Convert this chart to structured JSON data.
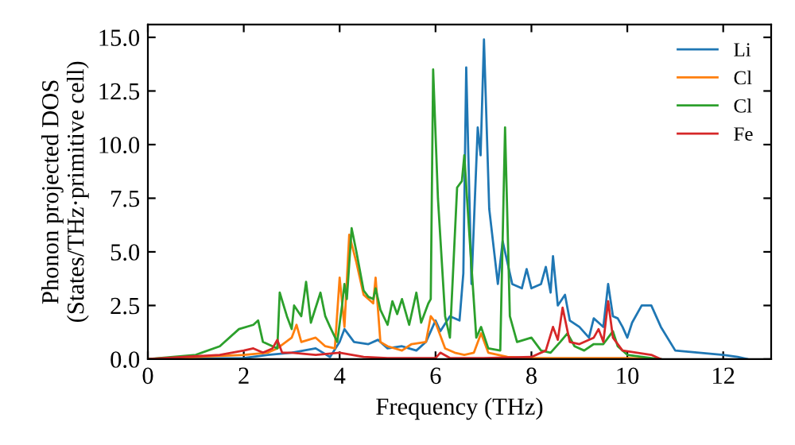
{
  "chart_data": {
    "type": "line",
    "xlabel": "Frequency (THz)",
    "ylabel": "Phonon projected DOS\n(States/THz·primitive cell)",
    "xlim": [
      0,
      13
    ],
    "ylim": [
      0,
      15.6
    ],
    "xticks": [
      0,
      2,
      4,
      6,
      8,
      10,
      12
    ],
    "yticks": [
      {
        "value": 0,
        "label": "0.0"
      },
      {
        "value": 2.5,
        "label": "2.5"
      },
      {
        "value": 5,
        "label": "5.0"
      },
      {
        "value": 7.5,
        "label": "7.5"
      },
      {
        "value": 10,
        "label": "10.0"
      },
      {
        "value": 12.5,
        "label": "12.5"
      },
      {
        "value": 15,
        "label": "15.0"
      }
    ],
    "grid": false,
    "legend": "top right",
    "line_style": "solid",
    "series": [
      {
        "name": "Li",
        "color": "#1f77b4",
        "x": [
          0,
          2,
          2.5,
          3,
          3.5,
          3.8,
          4,
          4.1,
          4.3,
          4.6,
          4.8,
          5,
          5.3,
          5.6,
          5.8,
          6,
          6.1,
          6.3,
          6.5,
          6.58,
          6.64,
          6.75,
          6.88,
          6.94,
          7.01,
          7.12,
          7.3,
          7.4,
          7.5,
          7.6,
          7.8,
          7.9,
          8.0,
          8.2,
          8.3,
          8.4,
          8.45,
          8.55,
          8.7,
          8.8,
          9.0,
          9.2,
          9.3,
          9.4,
          9.5,
          9.6,
          9.7,
          9.8,
          9.9,
          10.0,
          10.1,
          10.3,
          10.5,
          10.7,
          11.0,
          12.0,
          12.3,
          12.5
        ],
        "values": [
          0,
          0.05,
          0.2,
          0.3,
          0.5,
          0.1,
          0.8,
          1.4,
          0.8,
          0.7,
          0.9,
          0.5,
          0.6,
          0.4,
          0.8,
          1.8,
          1.3,
          2.0,
          1.8,
          4.0,
          13.6,
          3.5,
          10.8,
          9.5,
          14.9,
          7.0,
          3.5,
          5.5,
          4.5,
          3.5,
          3.3,
          4.2,
          3.3,
          3.5,
          4.3,
          3.1,
          4.8,
          2.5,
          3.0,
          1.8,
          1.5,
          1.0,
          1.9,
          1.7,
          1.5,
          3.5,
          2.0,
          1.9,
          1.5,
          1.0,
          1.7,
          2.5,
          2.5,
          1.5,
          0.4,
          0.2,
          0.1,
          0
        ]
      },
      {
        "name": "Cl",
        "color": "#ff7f0e",
        "x": [
          0,
          2,
          2.5,
          2.7,
          3.0,
          3.1,
          3.2,
          3.5,
          3.7,
          3.9,
          4.0,
          4.1,
          4.2,
          4.35,
          4.5,
          4.7,
          4.75,
          4.85,
          5.0,
          5.3,
          5.5,
          5.8,
          5.9,
          6.0,
          6.2,
          6.4,
          6.6,
          6.8,
          6.95,
          7.1,
          7.5,
          8.0,
          9,
          10,
          10.6
        ],
        "values": [
          0,
          0.2,
          0.3,
          0.5,
          1.0,
          1.6,
          0.8,
          1.0,
          0.6,
          0.5,
          3.8,
          1.5,
          5.8,
          4.5,
          3.0,
          2.6,
          3.8,
          0.8,
          0.6,
          0.4,
          0.7,
          0.8,
          2.0,
          1.7,
          0.5,
          0.3,
          0.2,
          0.3,
          1.2,
          0.3,
          0.1,
          0.05,
          0.05,
          0.05,
          0
        ]
      },
      {
        "name": "Cl",
        "color": "#2ca02c",
        "x": [
          0,
          1,
          1.5,
          1.9,
          2.2,
          2.3,
          2.4,
          2.7,
          2.75,
          2.9,
          3.0,
          3.05,
          3.2,
          3.3,
          3.4,
          3.6,
          3.7,
          3.8,
          3.95,
          4.05,
          4.1,
          4.15,
          4.25,
          4.35,
          4.5,
          4.6,
          4.7,
          4.75,
          4.85,
          5.0,
          5.1,
          5.2,
          5.3,
          5.45,
          5.6,
          5.7,
          5.85,
          5.9,
          5.95,
          6.05,
          6.2,
          6.3,
          6.45,
          6.55,
          6.6,
          6.7,
          6.85,
          6.95,
          7.1,
          7.35,
          7.45,
          7.55,
          7.7,
          8.0,
          8.2,
          8.4,
          8.6,
          8.75,
          8.9,
          9.1,
          9.3,
          9.5,
          9.7,
          9.8,
          10,
          10.5,
          10.7
        ],
        "values": [
          0,
          0.2,
          0.6,
          1.4,
          1.6,
          1.8,
          0.8,
          0.5,
          3.1,
          2.0,
          1.4,
          2.5,
          2.0,
          3.6,
          1.7,
          3.1,
          2.0,
          1.5,
          0.8,
          2.5,
          3.5,
          2.8,
          6.1,
          5.0,
          3.2,
          2.9,
          2.8,
          3.3,
          2.3,
          1.6,
          2.7,
          2.1,
          2.8,
          1.6,
          3.1,
          1.7,
          2.6,
          2.8,
          13.5,
          7.5,
          2.0,
          1.0,
          8.0,
          8.3,
          9.5,
          6.0,
          1.0,
          1.5,
          0.5,
          0.4,
          10.8,
          2.0,
          0.8,
          1.0,
          0.4,
          0.3,
          0.8,
          1.2,
          0.6,
          0.4,
          0.7,
          0.7,
          1.3,
          0.6,
          0.2,
          0.05,
          0
        ]
      },
      {
        "name": "Fe",
        "color": "#d62728",
        "x": [
          0,
          1.5,
          2,
          2.2,
          2.4,
          2.6,
          2.7,
          2.8,
          3,
          3.5,
          4.0,
          4.5,
          5,
          6,
          6.1,
          6.3,
          7,
          8,
          8.3,
          8.45,
          8.55,
          8.65,
          8.8,
          9.0,
          9.3,
          9.4,
          9.5,
          9.6,
          9.7,
          9.9,
          10.2,
          10.5,
          10.7
        ],
        "values": [
          0,
          0.2,
          0.4,
          0.5,
          0.3,
          0.5,
          0.9,
          0.3,
          0.3,
          0.2,
          0.3,
          0.1,
          0.05,
          0.05,
          0.3,
          0.05,
          0.05,
          0.1,
          0.4,
          1.5,
          0.9,
          2.4,
          0.8,
          0.7,
          1.0,
          1.4,
          0.8,
          2.7,
          1.0,
          0.4,
          0.3,
          0.2,
          0
        ]
      }
    ]
  }
}
